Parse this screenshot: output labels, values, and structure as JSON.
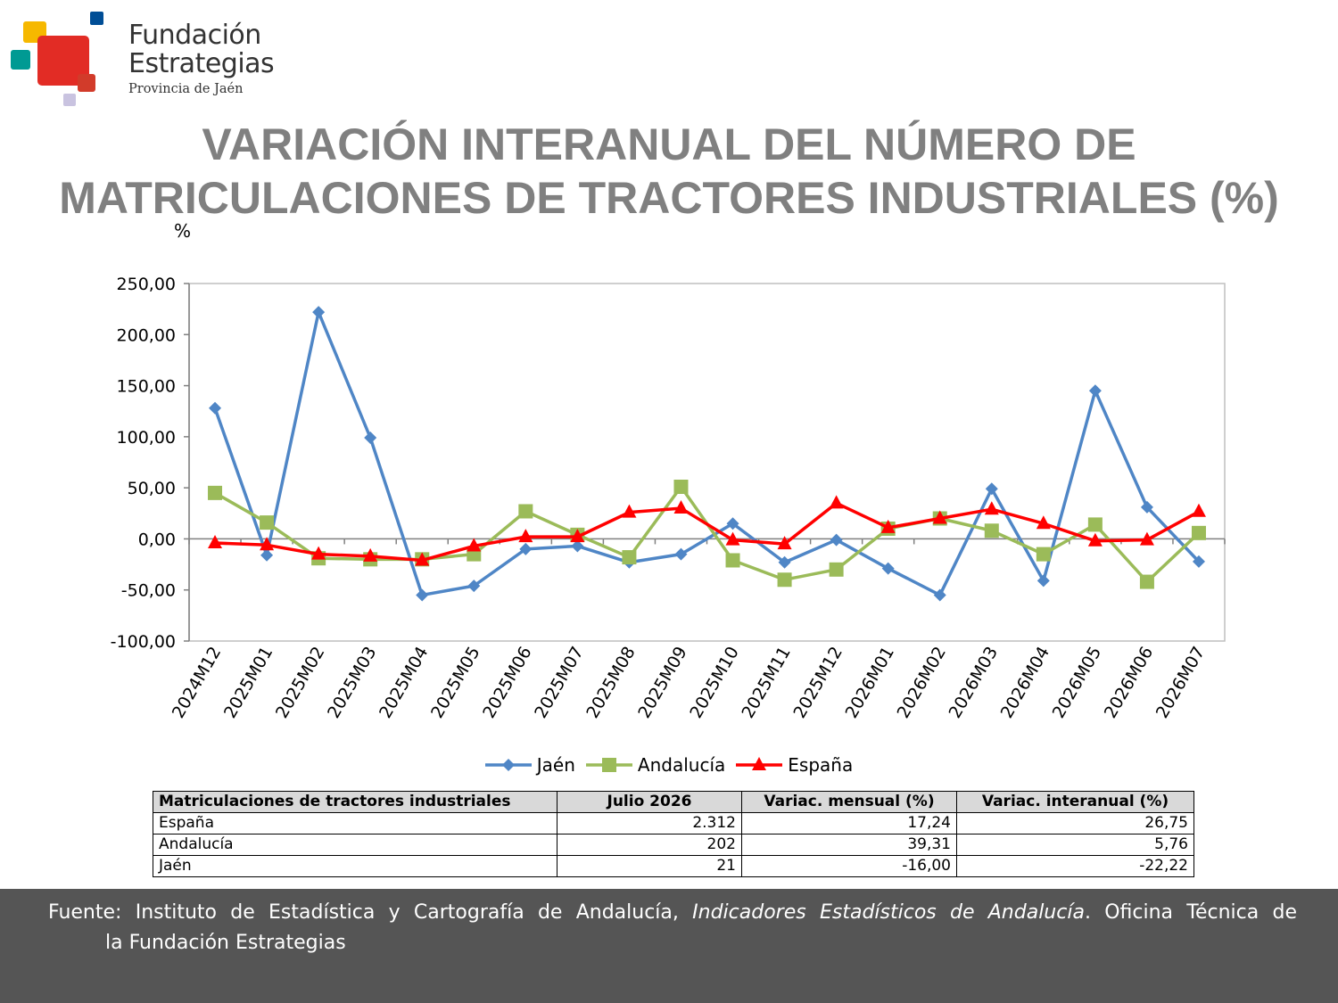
{
  "logo": {
    "line1": "Fundación",
    "line2": "Estrategias",
    "line3": "Provincia de Jaén",
    "colors": [
      "#f6b800",
      "#e22c25",
      "#009a93",
      "#004e96",
      "#c9c3e0",
      "#d23b2a"
    ]
  },
  "title": {
    "line1": "VARIACIÓN INTERANUAL DEL NÚMERO DE",
    "line2": "MATRICULACIONES DE TRACTORES INDUSTRIALES (%)"
  },
  "unit_label": "%",
  "chart_data": {
    "type": "line",
    "categories": [
      "2024M12",
      "2025M01",
      "2025M02",
      "2025M03",
      "2025M04",
      "2025M05",
      "2025M06",
      "2025M07",
      "2025M08",
      "2025M09",
      "2025M10",
      "2025M11",
      "2025M12",
      "2026M01",
      "2026M02",
      "2026M03",
      "2026M04",
      "2026M05",
      "2026M06",
      "2026M07"
    ],
    "series": [
      {
        "name": "Jaén",
        "color": "#4f86c6",
        "marker": "diamond",
        "values": [
          128,
          -16,
          222,
          99,
          -55,
          -46,
          -10,
          -7,
          -23,
          -15,
          15,
          -23,
          -1,
          -29,
          -55,
          49,
          -41,
          145,
          31,
          -22.22
        ]
      },
      {
        "name": "Andalucía",
        "color": "#9bbb59",
        "marker": "square",
        "values": [
          45,
          16,
          -19,
          -20,
          -20,
          -15,
          27,
          4,
          -18,
          51,
          -21,
          -40,
          -30,
          10,
          20,
          8,
          -15,
          14,
          -42,
          5.76
        ]
      },
      {
        "name": "España",
        "color": "#ff0000",
        "marker": "triangle",
        "values": [
          -4,
          -6,
          -15,
          -17,
          -21,
          -7,
          2,
          2,
          26,
          30,
          -1,
          -5,
          35,
          11,
          20,
          29,
          15,
          -2,
          -1,
          26.75
        ]
      }
    ],
    "ylim": [
      -100,
      250
    ],
    "yticks": [
      "250,00",
      "200,00",
      "150,00",
      "100,00",
      "50,00",
      "0,00",
      "-50,00",
      "-100,00"
    ],
    "ytick_values": [
      250,
      200,
      150,
      100,
      50,
      0,
      -50,
      -100
    ],
    "grid": false,
    "legend": "bottom"
  },
  "table": {
    "headers": [
      "Matriculaciones de tractores industriales",
      "Julio 2026",
      "Variac. mensual (%)",
      "Variac. interanual (%)"
    ],
    "rows": [
      [
        "España",
        "2.312",
        "17,24",
        "26,75"
      ],
      [
        "Andalucía",
        "202",
        "39,31",
        "5,76"
      ],
      [
        "Jaén",
        "21",
        "-16,00",
        "-22,22"
      ]
    ]
  },
  "footer": {
    "source_prefix": "Fuente: Instituto de Estadística y Cartografía de Andalucía, ",
    "source_italic": "Indicadores Estadísticos de Andalucía",
    "source_suffix": ". Oficina Técnica de",
    "source_line2": "la Fundación Estrategias"
  }
}
